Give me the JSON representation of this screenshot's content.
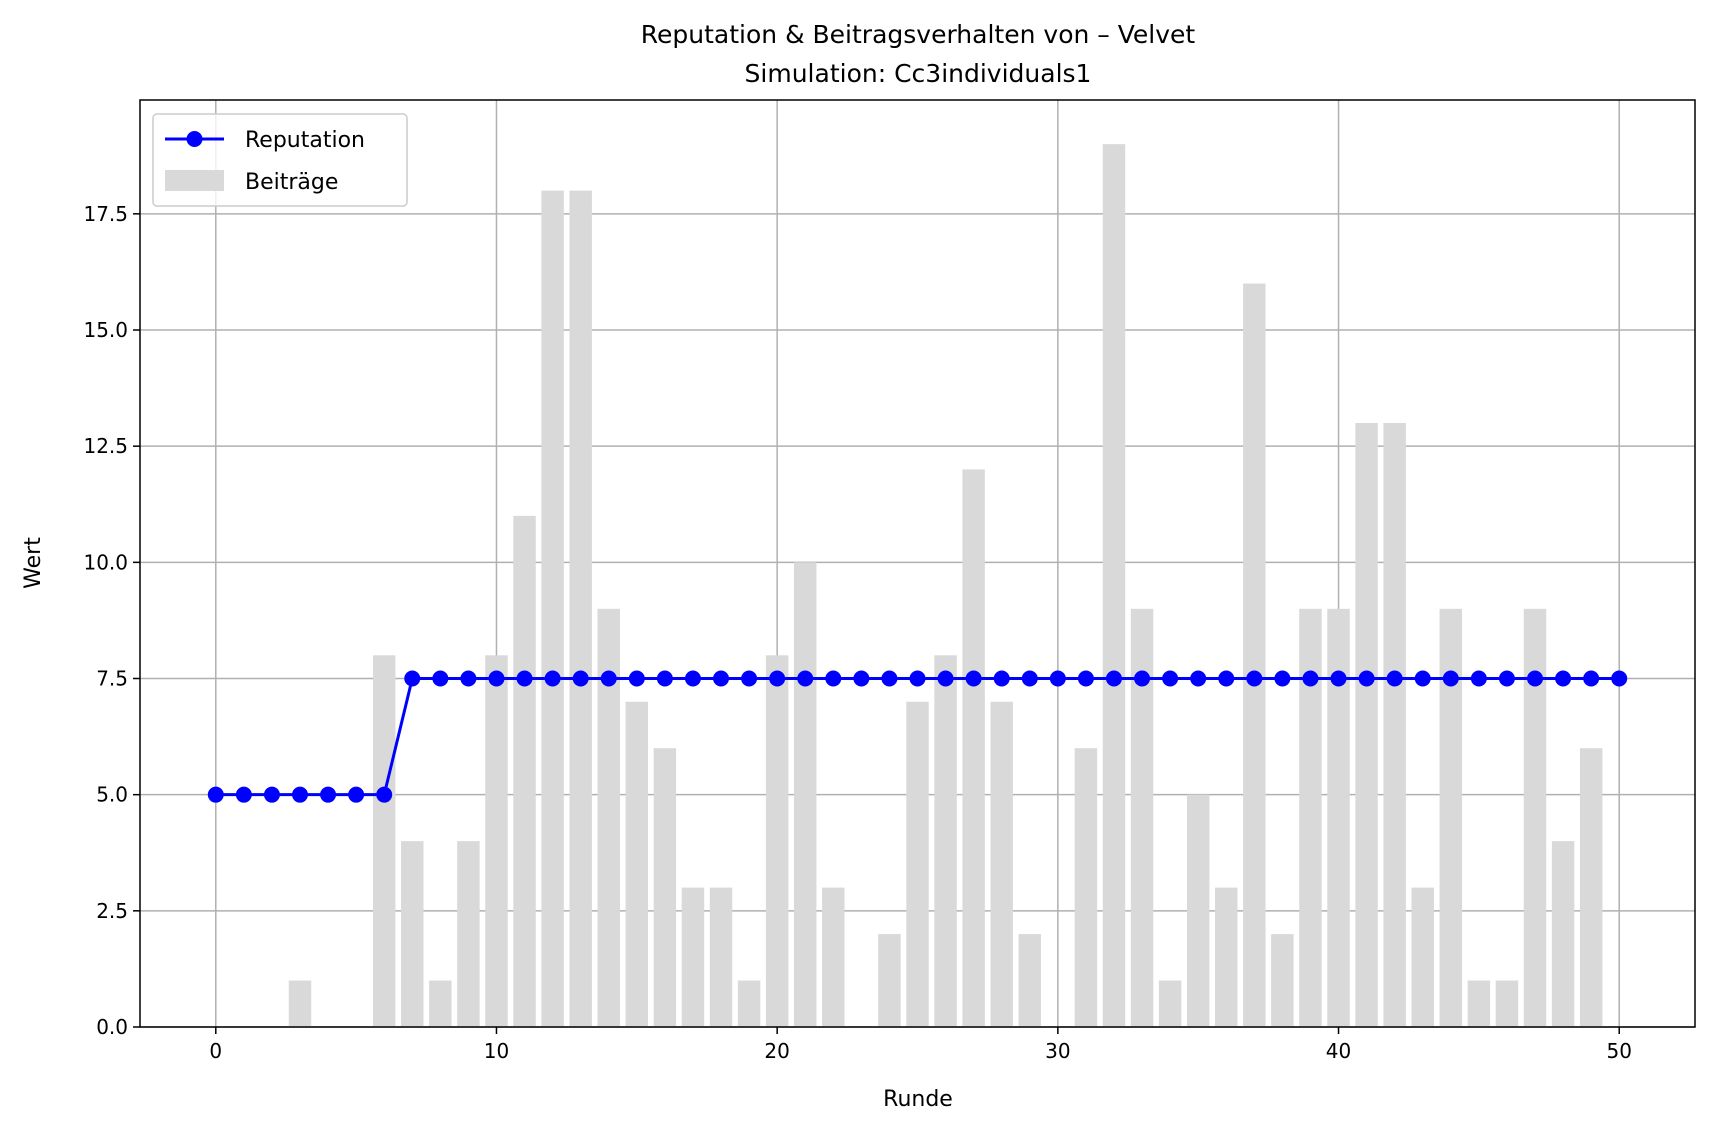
{
  "chart_data": {
    "type": "bar",
    "title": "Reputation & Beitragsverhalten von – Velvet",
    "subtitle": "Simulation: Cc3individuals1",
    "xlabel": "Runde",
    "ylabel": "Wert",
    "xlim": [
      -2.7,
      52.7
    ],
    "ylim": [
      0,
      19.95
    ],
    "xticks": [
      0,
      10,
      20,
      30,
      40,
      50
    ],
    "xtick_labels": [
      "0",
      "10",
      "20",
      "30",
      "40",
      "50"
    ],
    "yticks": [
      0,
      2.5,
      5,
      7.5,
      10,
      12.5,
      15,
      17.5
    ],
    "ytick_labels": [
      "0.0",
      "2.5",
      "5.0",
      "7.5",
      "10.0",
      "12.5",
      "15.0",
      "17.5"
    ],
    "grid": true,
    "legend_position": "top-left",
    "series": [
      {
        "name": "Reputation",
        "kind": "line",
        "color": "#0000ff",
        "marker": "circle",
        "x": [
          0,
          1,
          2,
          3,
          4,
          5,
          6,
          7,
          8,
          9,
          10,
          11,
          12,
          13,
          14,
          15,
          16,
          17,
          18,
          19,
          20,
          21,
          22,
          23,
          24,
          25,
          26,
          27,
          28,
          29,
          30,
          31,
          32,
          33,
          34,
          35,
          36,
          37,
          38,
          39,
          40,
          41,
          42,
          43,
          44,
          45,
          46,
          47,
          48,
          49,
          50
        ],
        "values": [
          5,
          5,
          5,
          5,
          5,
          5,
          5,
          7.5,
          7.5,
          7.5,
          7.5,
          7.5,
          7.5,
          7.5,
          7.5,
          7.5,
          7.5,
          7.5,
          7.5,
          7.5,
          7.5,
          7.5,
          7.5,
          7.5,
          7.5,
          7.5,
          7.5,
          7.5,
          7.5,
          7.5,
          7.5,
          7.5,
          7.5,
          7.5,
          7.5,
          7.5,
          7.5,
          7.5,
          7.5,
          7.5,
          7.5,
          7.5,
          7.5,
          7.5,
          7.5,
          7.5,
          7.5,
          7.5,
          7.5,
          7.5,
          7.5
        ]
      },
      {
        "name": "Beiträge",
        "kind": "bar",
        "color": "#d9d9d9",
        "x": [
          0,
          1,
          2,
          3,
          4,
          5,
          6,
          7,
          8,
          9,
          10,
          11,
          12,
          13,
          14,
          15,
          16,
          17,
          18,
          19,
          20,
          21,
          22,
          23,
          24,
          25,
          26,
          27,
          28,
          29,
          30,
          31,
          32,
          33,
          34,
          35,
          36,
          37,
          38,
          39,
          40,
          41,
          42,
          43,
          44,
          45,
          46,
          47,
          48,
          49
        ],
        "values": [
          0,
          0,
          0,
          1,
          0,
          0,
          8,
          4,
          1,
          4,
          8,
          11,
          18,
          18,
          9,
          7,
          6,
          3,
          3,
          1,
          8,
          10,
          3,
          0,
          2,
          7,
          8,
          12,
          7,
          2,
          0,
          6,
          19,
          9,
          1,
          5,
          3,
          16,
          2,
          9,
          9,
          13,
          13,
          3,
          9,
          1,
          1,
          9,
          4,
          6
        ]
      }
    ]
  }
}
